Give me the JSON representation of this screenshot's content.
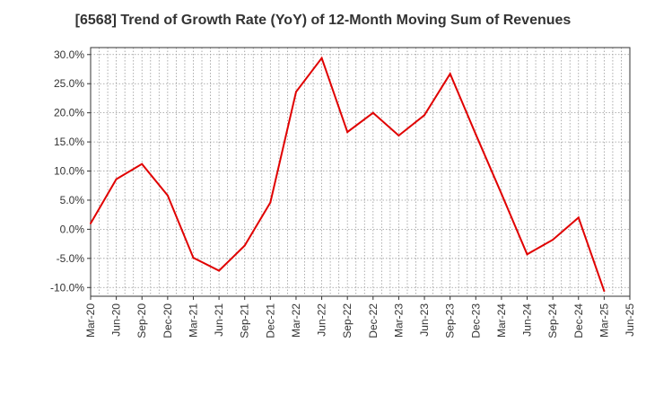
{
  "chart_data": {
    "type": "line",
    "title": "[6568]  Trend of Growth Rate (YoY) of 12-Month Moving Sum of Revenues",
    "xlabel": "",
    "ylabel": "",
    "x_ticks": [
      "Mar-20",
      "Jun-20",
      "Sep-20",
      "Dec-20",
      "Mar-21",
      "Jun-21",
      "Sep-21",
      "Dec-21",
      "Mar-22",
      "Jun-22",
      "Sep-22",
      "Dec-22",
      "Mar-23",
      "Jun-23",
      "Sep-23",
      "Dec-23",
      "Mar-24",
      "Jun-24",
      "Sep-24",
      "Dec-24",
      "Mar-25",
      "Jun-25"
    ],
    "y_ticks": [
      "30.0%",
      "25.0%",
      "20.0%",
      "15.0%",
      "10.0%",
      "5.0%",
      "0.0%",
      "-5.0%",
      "-10.0%"
    ],
    "y_tick_values": [
      30,
      25,
      20,
      15,
      10,
      5,
      0,
      -5,
      -10
    ],
    "ylim": [
      -11.5,
      31.2
    ],
    "grid": true,
    "series": [
      {
        "color": "#e00000",
        "x": [
          "Mar-20",
          "Jun-20",
          "Sep-20",
          "Dec-20",
          "Mar-21",
          "Jun-21",
          "Sep-21",
          "Dec-21",
          "Mar-22",
          "Jun-22",
          "Sep-22",
          "Dec-22",
          "Mar-23",
          "Jun-23",
          "Sep-23",
          "Dec-23",
          "Mar-24",
          "Jun-24",
          "Sep-24",
          "Dec-24",
          "Mar-25"
        ],
        "values": [
          1.0,
          8.6,
          11.2,
          5.8,
          -4.9,
          -7.1,
          -2.8,
          4.6,
          23.6,
          29.4,
          16.7,
          20.0,
          16.1,
          19.6,
          26.7,
          16.3,
          6.1,
          -4.3,
          -1.8,
          2.0,
          -10.6
        ]
      }
    ]
  }
}
